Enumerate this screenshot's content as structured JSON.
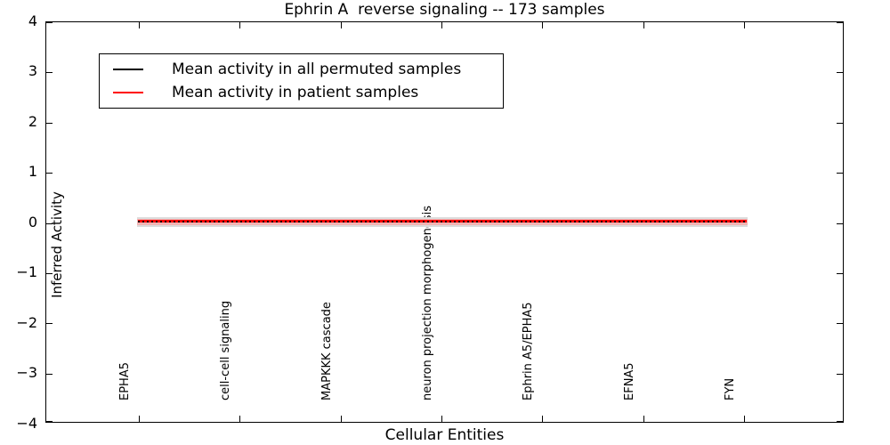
{
  "title": "Ephrin A  reverse signaling -- 173 samples",
  "axes": {
    "ylabel": "Inferred Activity",
    "xlabel": "Cellular Entities",
    "y_tick_labels": [
      "4",
      "3",
      "2",
      "1",
      "0",
      "−1",
      "−2",
      "−3",
      "−4"
    ]
  },
  "legend": {
    "items": [
      {
        "label": "Mean activity in all permuted samples",
        "color": "#000000"
      },
      {
        "label": "Mean activity in patient samples",
        "color": "#ff0000"
      }
    ]
  },
  "chart_data": {
    "type": "line",
    "title": "Ephrin A  reverse signaling -- 173 samples",
    "xlabel": "Cellular Entities",
    "ylabel": "Inferred Activity",
    "categories": [
      "EPHA5",
      "cell-cell signaling",
      "MAPKKK cascade",
      "neuron projection morphogenesis",
      "Ephrin A5/EPHA5",
      "EFNA5",
      "FYN"
    ],
    "series": [
      {
        "name": "Mean activity in all permuted samples",
        "color": "#000000",
        "linestyle": "dashed",
        "values": [
          0.02,
          0.02,
          0.02,
          0.02,
          0.02,
          0.02,
          0.02
        ]
      },
      {
        "name": "Mean activity in patient samples",
        "color": "#ff0000",
        "linestyle": "solid",
        "values": [
          0.05,
          0.05,
          0.05,
          0.05,
          0.05,
          0.05,
          0.05
        ]
      }
    ],
    "band": {
      "description": "shaded spread band around the mean lines",
      "approx_halfwidth": 0.1,
      "colors": [
        "#dcdcdc",
        "#f2b4b4"
      ]
    },
    "ylim": [
      -4,
      4
    ],
    "y_ticks": [
      4,
      3,
      2,
      1,
      0,
      -1,
      -2,
      -3,
      -4
    ],
    "grid": false,
    "legend_position": "upper left"
  }
}
